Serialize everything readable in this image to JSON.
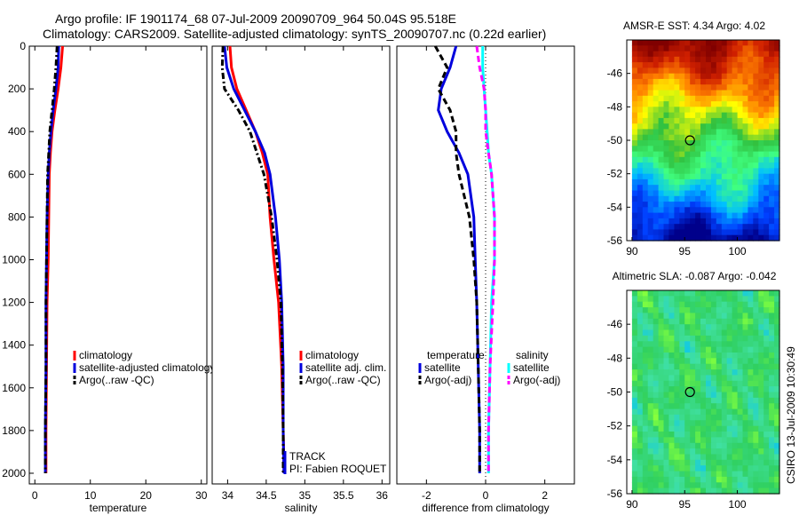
{
  "header": {
    "line1": "Argo profile: IF 1901174_68 07-Jul-2009 20090709_964 50.04S 95.518E",
    "line2": "Climatology: CARS2009. Satellite-adjusted climatology: synTS_20090707.nc (0.22d earlier)"
  },
  "credit": "CSIRO 13-Jul-2009 10:30:49",
  "colors": {
    "climatology": "#ff0000",
    "satellite": "#0000dd",
    "argo": "#000000",
    "salinity_satellite": "#00ffff",
    "salinity_argo": "#ff00ff"
  },
  "track": {
    "line1": "TRACK",
    "line2": "PI: Fabien ROQUET"
  },
  "chart_data": [
    {
      "id": "temperature",
      "type": "line",
      "xlabel": "temperature",
      "ylabel": "",
      "xlim": [
        -1,
        31
      ],
      "ylim": [
        2050,
        0
      ],
      "xticks": [
        "0",
        "10",
        "20",
        "30"
      ],
      "xtick_values": [
        0,
        10,
        20,
        30
      ],
      "yticks": [
        "0",
        "200",
        "400",
        "600",
        "800",
        "1000",
        "1200",
        "1400",
        "1600",
        "1800",
        "2000"
      ],
      "ytick_values": [
        0,
        200,
        400,
        600,
        800,
        1000,
        1200,
        1400,
        1600,
        1800,
        2000
      ],
      "legend": [
        {
          "label": "climatology",
          "series": "climatology"
        },
        {
          "label": "satellite-adjusted climatology",
          "series": "satellite"
        },
        {
          "label": "Argo(..raw -QC)",
          "series": "argo"
        }
      ],
      "series": [
        {
          "name": "climatology",
          "style": "solid",
          "color": "#ff0000",
          "x": [
            5.0,
            4.7,
            4.2,
            3.6,
            3.1,
            2.8,
            2.6,
            2.5,
            2.4,
            2.2,
            2.1,
            2.0,
            2.0
          ],
          "y": [
            0,
            100,
            200,
            300,
            400,
            500,
            600,
            800,
            1000,
            1200,
            1500,
            1800,
            2000
          ]
        },
        {
          "name": "satellite",
          "style": "solid",
          "color": "#0000dd",
          "x": [
            4.3,
            4.2,
            3.8,
            3.3,
            2.9,
            2.6,
            2.4,
            2.2,
            2.1,
            2.0,
            2.0,
            1.9,
            1.9
          ],
          "y": [
            0,
            100,
            200,
            300,
            400,
            500,
            600,
            800,
            1000,
            1200,
            1500,
            1800,
            2000
          ]
        },
        {
          "name": "argo",
          "style": "dashdot",
          "color": "#000000",
          "x": [
            4.0,
            3.8,
            3.5,
            3.1,
            2.7,
            2.5,
            2.3,
            2.2,
            2.1,
            2.0,
            2.0,
            1.9,
            1.9
          ],
          "y": [
            0,
            100,
            200,
            300,
            400,
            500,
            600,
            800,
            1000,
            1200,
            1500,
            1800,
            2000
          ]
        }
      ]
    },
    {
      "id": "salinity",
      "type": "line",
      "xlabel": "salinity",
      "ylabel": "",
      "xlim": [
        33.8,
        36.1
      ],
      "ylim": [
        2050,
        0
      ],
      "xticks": [
        "34",
        "34.5",
        "35",
        "35.5",
        "36"
      ],
      "xtick_values": [
        34,
        34.5,
        35,
        35.5,
        36
      ],
      "yticks": [],
      "ytick_values": [],
      "legend": [
        {
          "label": "climatology",
          "series": "climatology"
        },
        {
          "label": "satellite adj. clim.",
          "series": "satellite"
        },
        {
          "label": "Argo(..raw -QC)",
          "series": "argo"
        }
      ],
      "series": [
        {
          "name": "climatology",
          "style": "solid",
          "color": "#ff0000",
          "x": [
            34.03,
            34.05,
            34.12,
            34.24,
            34.36,
            34.45,
            34.52,
            34.55,
            34.6,
            34.66,
            34.7,
            34.72,
            34.73
          ],
          "y": [
            0,
            100,
            200,
            300,
            400,
            500,
            600,
            800,
            1000,
            1200,
            1500,
            1800,
            2000
          ]
        },
        {
          "name": "satellite",
          "style": "solid",
          "color": "#0000dd",
          "x": [
            33.96,
            33.99,
            34.08,
            34.22,
            34.36,
            34.48,
            34.55,
            34.62,
            34.67,
            34.7,
            34.72,
            34.72,
            34.73
          ],
          "y": [
            0,
            100,
            200,
            300,
            400,
            500,
            600,
            800,
            1000,
            1200,
            1500,
            1800,
            2000
          ]
        },
        {
          "name": "argo",
          "style": "dashdot",
          "color": "#000000",
          "x": [
            33.94,
            33.93,
            33.96,
            34.14,
            34.29,
            34.38,
            34.47,
            34.57,
            34.64,
            34.69,
            34.71,
            34.72,
            34.72
          ],
          "y": [
            0,
            100,
            200,
            300,
            400,
            500,
            600,
            800,
            1000,
            1200,
            1500,
            1800,
            2000
          ]
        }
      ]
    },
    {
      "id": "difference",
      "type": "line",
      "xlabel": "difference from climatology",
      "ylabel": "",
      "xlim": [
        -3,
        3
      ],
      "ylim": [
        2050,
        0
      ],
      "xticks": [
        "-2",
        "0",
        "2"
      ],
      "xtick_values": [
        -2,
        0,
        2
      ],
      "yticks": [],
      "ytick_values": [],
      "legend_groups": [
        {
          "title": "temperature",
          "items": [
            {
              "label": "satellite",
              "series": "temp_sat"
            },
            {
              "label": "Argo(-adj)",
              "series": "temp_argo"
            }
          ]
        },
        {
          "title": "salinity",
          "items": [
            {
              "label": "satellite",
              "series": "sal_sat"
            },
            {
              "label": "Argo(-adj)",
              "series": "sal_argo"
            }
          ]
        }
      ],
      "series": [
        {
          "name": "temp_sat",
          "style": "solid",
          "color": "#0000dd",
          "x": [
            -1.0,
            -1.2,
            -1.5,
            -1.6,
            -1.3,
            -0.9,
            -0.6,
            -0.4,
            -0.35,
            -0.3,
            -0.25,
            -0.2,
            -0.2
          ],
          "y": [
            0,
            100,
            200,
            300,
            400,
            500,
            600,
            800,
            1000,
            1200,
            1500,
            1800,
            2000
          ]
        },
        {
          "name": "temp_argo",
          "style": "dashed",
          "color": "#000000",
          "x": [
            -1.7,
            -1.3,
            -1.6,
            -1.2,
            -1.0,
            -1.0,
            -0.9,
            -0.55,
            -0.4,
            -0.3,
            -0.25,
            -0.2,
            -0.2
          ],
          "y": [
            0,
            100,
            200,
            300,
            400,
            500,
            600,
            800,
            1000,
            1200,
            1500,
            1800,
            2000
          ]
        },
        {
          "name": "sal_sat",
          "style": "solid",
          "color": "#00ffff",
          "x": [
            -0.1,
            -0.1,
            -0.05,
            0.0,
            0.05,
            0.1,
            0.2,
            0.3,
            0.3,
            0.2,
            0.15,
            0.1,
            0.1
          ],
          "y": [
            0,
            100,
            200,
            300,
            400,
            500,
            600,
            800,
            1000,
            1200,
            1500,
            1800,
            2000
          ]
        },
        {
          "name": "sal_argo",
          "style": "dashed",
          "color": "#ff00ff",
          "x": [
            -0.3,
            -0.2,
            -0.05,
            0.0,
            0.0,
            0.1,
            0.2,
            0.3,
            0.3,
            0.25,
            0.15,
            0.1,
            0.1
          ],
          "y": [
            0,
            100,
            200,
            300,
            400,
            500,
            600,
            800,
            1000,
            1200,
            1500,
            1800,
            2000
          ]
        }
      ]
    },
    {
      "id": "sst_map",
      "type": "heatmap",
      "title": "AMSR-E SST: 4.34 Argo: 4.02",
      "xlim": [
        89.5,
        104
      ],
      "ylim": [
        -56,
        -44
      ],
      "xticks": [
        "90",
        "95",
        "100"
      ],
      "xtick_values": [
        90,
        95,
        100
      ],
      "yticks": [
        "-46",
        "-48",
        "-50",
        "-52",
        "-54",
        "-56"
      ],
      "ytick_values": [
        -46,
        -48,
        -50,
        -52,
        -54,
        -56
      ],
      "marker": {
        "lon": 95.5,
        "lat": -50.0
      },
      "color_scale": [
        "#00008b",
        "#0040ff",
        "#00c0ff",
        "#40ff80",
        "#30c040",
        "#ffff00",
        "#ff8000",
        "#d02000",
        "#800000"
      ]
    },
    {
      "id": "sla_map",
      "type": "heatmap",
      "title": "Altimetric SLA: -0.087 Argo: -0.042",
      "xlim": [
        89.5,
        104
      ],
      "ylim": [
        -56,
        -44
      ],
      "xticks": [
        "90",
        "95",
        "100"
      ],
      "xtick_values": [
        90,
        95,
        100
      ],
      "yticks": [
        "-46",
        "-48",
        "-50",
        "-52",
        "-54",
        "-56"
      ],
      "ytick_values": [
        -46,
        -48,
        -50,
        -52,
        -54,
        -56
      ],
      "marker": {
        "lon": 95.5,
        "lat": -50.0
      },
      "color_scale": [
        "#2060ff",
        "#00c0ff",
        "#40e0a0",
        "#30d060",
        "#80ff40",
        "#ffff00",
        "#ff8000"
      ]
    }
  ]
}
